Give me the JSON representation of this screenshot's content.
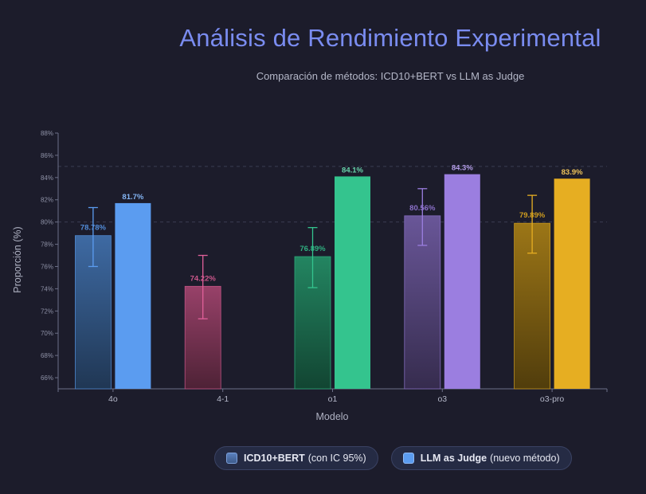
{
  "title": "Análisis de Rendimiento Experimental",
  "subtitle": "Comparación de métodos: ICD10+BERT vs LLM as Judge",
  "legend": [
    {
      "name": "ICD10+BERT",
      "note": "(con IC 95%)",
      "color": "#4a6fa8"
    },
    {
      "name": "LLM as Judge",
      "note": "(nuevo método)",
      "color": "#5b9cf0"
    }
  ],
  "chart_data": {
    "type": "bar",
    "xlabel": "Modelo",
    "ylabel": "Proporción (%)",
    "ylim": [
      65,
      88
    ],
    "yticks": [
      66,
      68,
      70,
      72,
      74,
      76,
      78,
      80,
      82,
      84,
      86,
      88
    ],
    "ytick_labels": [
      "66%",
      "68%",
      "70%",
      "72%",
      "74%",
      "76%",
      "78%",
      "80%",
      "82%",
      "84%",
      "86%",
      "88%"
    ],
    "grid": "horizontal dashed at 80% and 85%",
    "legend_position": "bottom",
    "categories": [
      "4o",
      "4-1",
      "o1",
      "o3",
      "o3-pro"
    ],
    "category_colors": [
      "#5b9cf0",
      "#e0609a",
      "#34c48e",
      "#9b7ee0",
      "#e6ae22"
    ],
    "series": [
      {
        "name": "ICD10+BERT",
        "values": [
          78.78,
          74.22,
          76.89,
          80.56,
          79.89
        ],
        "labels": [
          "78.78%",
          "74.22%",
          "76.89%",
          "80.56%",
          "79.89%"
        ],
        "ci_low": [
          76.0,
          71.3,
          74.1,
          77.9,
          77.2
        ],
        "ci_high": [
          81.3,
          77.0,
          79.5,
          83.0,
          82.4
        ]
      },
      {
        "name": "LLM as Judge",
        "values": [
          81.7,
          null,
          84.1,
          84.3,
          83.9
        ],
        "labels": [
          "81.7%",
          "",
          "84.1%",
          "84.3%",
          "83.9%"
        ]
      }
    ]
  }
}
